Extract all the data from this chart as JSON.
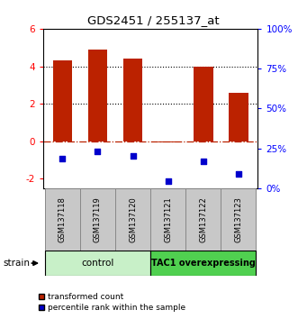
{
  "title": "GDS2451 / 255137_at",
  "samples": [
    "GSM137118",
    "GSM137119",
    "GSM137120",
    "GSM137121",
    "GSM137122",
    "GSM137123"
  ],
  "red_bars": [
    4.3,
    4.9,
    4.4,
    -0.08,
    4.0,
    2.6
  ],
  "blue_dots": [
    -0.9,
    -0.55,
    -0.8,
    -2.1,
    -1.05,
    -1.75
  ],
  "ylim_left": [
    -2.5,
    6.0
  ],
  "ylim_right": [
    0,
    100
  ],
  "left_yticks": [
    -2,
    0,
    2,
    4,
    6
  ],
  "right_yticks": [
    0,
    25,
    50,
    75,
    100
  ],
  "control_label": "control",
  "tac1_label": "TAC1 overexpressing",
  "strain_label": "strain",
  "legend_red": "transformed count",
  "legend_blue": "percentile rank within the sample",
  "control_color": "#c8f0c8",
  "tac1_color": "#50d050",
  "bar_color": "#bb2200",
  "dot_color": "#0000cc",
  "hline_color": "#bb2200",
  "box_color": "#c8c8c8",
  "box_edge_color": "#888888"
}
